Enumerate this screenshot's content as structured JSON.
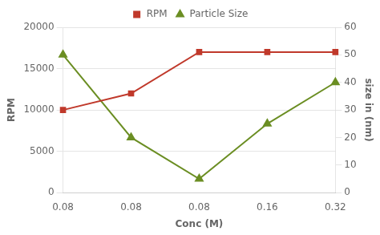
{
  "chart_data": {
    "type": "line",
    "xlabel": "Conc (M)",
    "ylabel": "RPM",
    "y2label": "size in (nm)",
    "categories": [
      "0.08",
      "0.08",
      "0.08",
      "0.16",
      "0.32"
    ],
    "series": [
      {
        "name": "RPM",
        "color": "#C0392B",
        "marker": "square",
        "values": [
          10000,
          12000,
          17000,
          17000,
          17000
        ]
      },
      {
        "name": "Particle Size",
        "color": "#6B8E23",
        "marker": "triangle",
        "axis": "y2",
        "values": [
          50,
          20,
          5,
          25,
          40
        ]
      }
    ],
    "ylim": [
      0,
      20000
    ],
    "yticks": [
      0,
      5000,
      10000,
      15000,
      20000
    ],
    "y2lim": [
      0,
      60
    ],
    "y2ticks": [
      0,
      10,
      20,
      30,
      40,
      50,
      60
    ],
    "grid": true,
    "legend": "top"
  }
}
